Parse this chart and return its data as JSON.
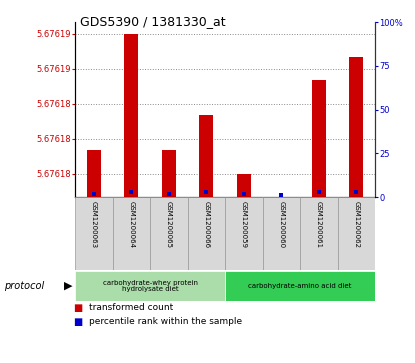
{
  "title": "GDS5390 / 1381330_at",
  "samples": [
    "GSM1200063",
    "GSM1200064",
    "GSM1200065",
    "GSM1200066",
    "GSM1200059",
    "GSM1200060",
    "GSM1200061",
    "GSM1200062"
  ],
  "transformed_count": [
    5.676182,
    5.676192,
    5.676182,
    5.676185,
    5.67618,
    5.676178,
    5.676188,
    5.67619
  ],
  "percentile_rank": [
    2,
    3,
    2,
    3,
    2,
    1,
    3,
    3
  ],
  "ylim_left": [
    5.676178,
    5.676193
  ],
  "ylim_right": [
    0,
    100
  ],
  "yticks_left": [
    5.67618,
    5.676183,
    5.676186,
    5.676189,
    5.676192
  ],
  "ytick_left_labels": [
    "5.67618",
    "5.67618",
    "5.67618",
    "5.67619",
    "5.67619"
  ],
  "yticks_right": [
    0,
    25,
    50,
    75,
    100
  ],
  "ytick_right_labels": [
    "0",
    "25",
    "50",
    "75",
    "100%"
  ],
  "bar_color": "#cc0000",
  "percentile_color": "#0000cc",
  "protocol_groups": [
    {
      "label": "carbohydrate-whey protein\nhydrolysate diet",
      "start": 0,
      "end": 4,
      "color": "#aaddaa"
    },
    {
      "label": "carbohydrate-amino acid diet",
      "start": 4,
      "end": 8,
      "color": "#33cc55"
    }
  ],
  "protocol_label": "protocol",
  "legend_items": [
    {
      "label": "transformed count",
      "color": "#cc0000"
    },
    {
      "label": "percentile rank within the sample",
      "color": "#0000cc"
    }
  ],
  "grid_color": "#888888",
  "bg_color": "#ffffff",
  "bar_width": 0.38
}
